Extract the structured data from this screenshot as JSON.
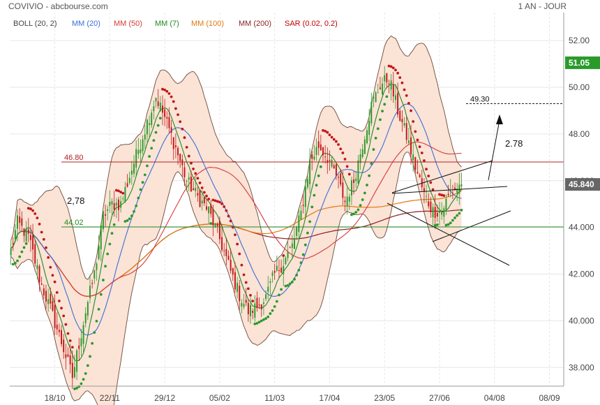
{
  "header": {
    "title": "COVIVIO - abcbourse.com",
    "period": "1 AN - JOUR"
  },
  "legend": [
    {
      "label": "BOLL (20, 2)",
      "color": "#444444"
    },
    {
      "label": "MM (20)",
      "color": "#3a6fd8"
    },
    {
      "label": "MM (50)",
      "color": "#d83a3a"
    },
    {
      "label": "MM (7)",
      "color": "#1f8a1f"
    },
    {
      "label": "MM (100)",
      "color": "#e07a10"
    },
    {
      "label": "MM (200)",
      "color": "#8a1f1f"
    },
    {
      "label": "SAR (0.02, 0.2)",
      "color": "#c00000"
    }
  ],
  "colors": {
    "up": "#2a9a2a",
    "down": "#c01818",
    "band_fill": "#fbe3d6",
    "band_line": "#6b4a3a",
    "grid": "#e6e6e6",
    "last_price_bg": "#2a9a2a",
    "close_bg": "#666666"
  },
  "chart_data": {
    "type": "candlestick",
    "y_ticks": [
      "52.00",
      "50.00",
      "48.00",
      "46.000",
      "44.000",
      "42.000",
      "40.000",
      "38.000"
    ],
    "ylim": [
      37.2,
      53.2
    ],
    "x_ticks": [
      "18/10",
      "22/11",
      "29/12",
      "05/02",
      "11/03",
      "17/04",
      "23/05",
      "27/06",
      "04/08",
      "08/09"
    ],
    "x_tick_index": [
      20,
      45,
      70,
      95,
      120,
      145,
      170,
      195,
      220,
      245
    ],
    "n_days": 252,
    "last_index": 205,
    "last_price_label": "51.05",
    "last_price_value": 51.05,
    "close_label": "45.840",
    "close_value": 45.84,
    "price_anchors": [
      [
        0,
        43.0
      ],
      [
        3,
        44.2
      ],
      [
        8,
        43.6
      ],
      [
        14,
        41.5
      ],
      [
        18,
        40.5
      ],
      [
        24,
        38.8
      ],
      [
        28,
        37.6
      ],
      [
        34,
        40.4
      ],
      [
        38,
        42.0
      ],
      [
        42,
        44.5
      ],
      [
        46,
        45.0
      ],
      [
        50,
        45.0
      ],
      [
        55,
        46.5
      ],
      [
        62,
        48.5
      ],
      [
        66,
        49.6
      ],
      [
        70,
        48.7
      ],
      [
        75,
        47.4
      ],
      [
        80,
        46.0
      ],
      [
        85,
        45.3
      ],
      [
        90,
        44.7
      ],
      [
        95,
        43.5
      ],
      [
        100,
        42.1
      ],
      [
        104,
        41.1
      ],
      [
        108,
        40.4
      ],
      [
        112,
        40.6
      ],
      [
        116,
        41.0
      ],
      [
        120,
        42.0
      ],
      [
        124,
        42.5
      ],
      [
        128,
        43.2
      ],
      [
        132,
        44.6
      ],
      [
        136,
        46.8
      ],
      [
        140,
        47.5
      ],
      [
        144,
        47.0
      ],
      [
        148,
        46.2
      ],
      [
        152,
        45.1
      ],
      [
        156,
        46.0
      ],
      [
        160,
        47.6
      ],
      [
        164,
        49.2
      ],
      [
        168,
        50.1
      ],
      [
        172,
        50.4
      ],
      [
        176,
        49.0
      ],
      [
        180,
        47.9
      ],
      [
        184,
        46.6
      ],
      [
        188,
        45.4
      ],
      [
        192,
        44.7
      ],
      [
        196,
        44.7
      ],
      [
        200,
        45.5
      ],
      [
        205,
        45.84
      ]
    ],
    "volatility": 0.45,
    "annotations": {
      "resistance": {
        "value": 46.8,
        "label": "46.80",
        "color": "#b02020"
      },
      "support": {
        "value": 44.02,
        "label": "44.02",
        "color": "#1f8a1f"
      },
      "target": {
        "value": 49.3,
        "label": "49.30"
      },
      "measure_left": "2,78",
      "measure_right": "2.78"
    }
  }
}
